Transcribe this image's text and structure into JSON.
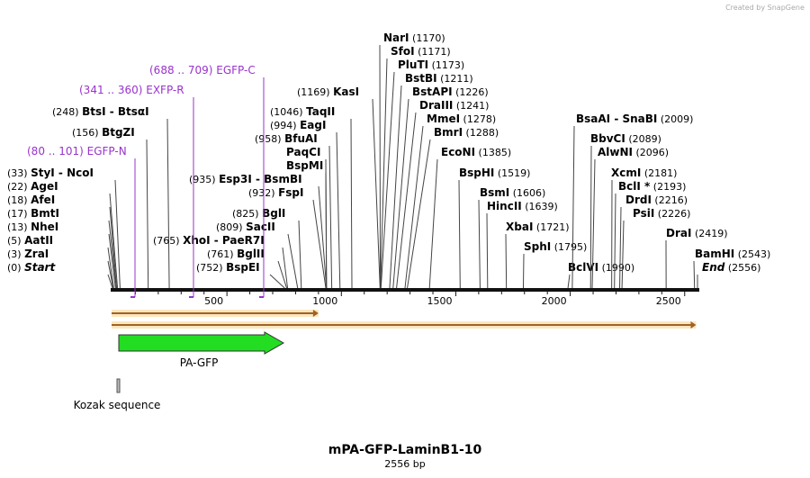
{
  "title": "mPA-GFP-LaminB1-10",
  "length_label": "2556 bp",
  "credit": "Created by SnapGene",
  "total_bp": 2556,
  "axis_ticks": [
    {
      "bp": 500,
      "label": "500"
    },
    {
      "bp": 1000,
      "label": "1000"
    },
    {
      "bp": 1500,
      "label": "1500"
    },
    {
      "bp": 2000,
      "label": "2000"
    },
    {
      "bp": 2500,
      "label": "2500"
    }
  ],
  "left_sites": [
    {
      "name": "Start",
      "pos": "(0)",
      "bp": 0,
      "italic": true
    },
    {
      "name": "ZraI",
      "pos": "(3)",
      "bp": 3
    },
    {
      "name": "AatII",
      "pos": "(5)",
      "bp": 5
    },
    {
      "name": "NheI",
      "pos": "(13)",
      "bp": 13
    },
    {
      "name": "BmtI",
      "pos": "(17)",
      "bp": 17
    },
    {
      "name": "AfeI",
      "pos": "(18)",
      "bp": 18
    },
    {
      "name": "AgeI",
      "pos": "(22)",
      "bp": 22
    },
    {
      "name": "StyI  - NcoI",
      "pos": "(33)",
      "bp": 33
    },
    {
      "name": "BtgZI",
      "pos": "(156)",
      "bp": 156
    },
    {
      "name": "BtsI - BtsαI",
      "pos": "(248)",
      "bp": 248
    },
    {
      "name": "XhoI  - PaeR7I",
      "pos": "(765)",
      "bp": 765
    },
    {
      "name": "BspEI",
      "pos": "(752)",
      "bp": 752
    },
    {
      "name": "BglII",
      "pos": "(761)",
      "bp": 761
    },
    {
      "name": "SacII",
      "pos": "(809)",
      "bp": 809
    },
    {
      "name": "BglI",
      "pos": "(825)",
      "bp": 825
    },
    {
      "name": "FspI",
      "pos": "(932)",
      "bp": 932
    },
    {
      "name": "Esp3I  - BsmBI",
      "pos": "(935)",
      "bp": 935
    },
    {
      "name": "BspMI",
      "pos": "",
      "bp": 935
    },
    {
      "name": "PaqCI",
      "pos": "",
      "bp": 935
    },
    {
      "name": "BfuAI",
      "pos": "(958)",
      "bp": 958
    },
    {
      "name": "EagI",
      "pos": "(994)",
      "bp": 994
    },
    {
      "name": "TaqII",
      "pos": "(1046)",
      "bp": 1046
    },
    {
      "name": "KasI",
      "pos": "(1169)",
      "bp": 1169
    }
  ],
  "right_sites": [
    {
      "name": "NarI",
      "pos": "(1170)",
      "bp": 1170
    },
    {
      "name": "SfoI",
      "pos": "(1171)",
      "bp": 1171
    },
    {
      "name": "PluTI",
      "pos": "(1173)",
      "bp": 1173
    },
    {
      "name": "BstBI",
      "pos": "(1211)",
      "bp": 1211
    },
    {
      "name": "BstAPI",
      "pos": "(1226)",
      "bp": 1226
    },
    {
      "name": "DraIII",
      "pos": "(1241)",
      "bp": 1241
    },
    {
      "name": "MmeI",
      "pos": "(1278)",
      "bp": 1278
    },
    {
      "name": "BmrI",
      "pos": "(1288)",
      "bp": 1288
    },
    {
      "name": "EcoNI",
      "pos": "(1385)",
      "bp": 1385
    },
    {
      "name": "BspHI",
      "pos": "(1519)",
      "bp": 1519
    },
    {
      "name": "BsmI",
      "pos": "(1606)",
      "bp": 1606
    },
    {
      "name": "HincII",
      "pos": "(1639)",
      "bp": 1639
    },
    {
      "name": "XbaI",
      "pos": "(1721)",
      "bp": 1721
    },
    {
      "name": "SphI",
      "pos": "(1795)",
      "bp": 1795
    },
    {
      "name": "BclVI",
      "pos": "(1990)",
      "bp": 1990
    },
    {
      "name": "BsaAI  - SnaBI",
      "pos": "(2009)",
      "bp": 2009
    },
    {
      "name": "BbvCI",
      "pos": "(2089)",
      "bp": 2089
    },
    {
      "name": "AlwNI",
      "pos": "(2096)",
      "bp": 2096
    },
    {
      "name": "XcmI",
      "pos": "(2181)",
      "bp": 2181
    },
    {
      "name": "BclI *",
      "pos": "(2193)",
      "bp": 2193
    },
    {
      "name": "DrdI",
      "pos": "(2216)",
      "bp": 2216
    },
    {
      "name": "PsiI",
      "pos": "(2226)",
      "bp": 2226
    },
    {
      "name": "DraI",
      "pos": "(2419)",
      "bp": 2419
    },
    {
      "name": "BamHI",
      "pos": "(2543)",
      "bp": 2543
    },
    {
      "name": "End",
      "pos": "(2556)",
      "bp": 2556,
      "italic": true
    }
  ],
  "primers": [
    {
      "name": "EGFP-N",
      "range": "(80 .. 101)",
      "bp": 101
    },
    {
      "name": "EXFP-R",
      "range": "(341 .. 360)",
      "bp": 341
    },
    {
      "name": "EGFP-C",
      "range": "(688 .. 709)",
      "bp": 688
    }
  ],
  "features": [
    {
      "name": "PA-GFP",
      "start_bp": 33,
      "end_bp": 750,
      "color": "#22dd22"
    },
    {
      "name": "Kozak sequence",
      "start_bp": 24,
      "end_bp": 33,
      "color": "#bbbbbb"
    }
  ],
  "orfs": [
    {
      "start_bp": 0,
      "end_bp": 900
    },
    {
      "start_bp": 0,
      "end_bp": 2550
    }
  ]
}
